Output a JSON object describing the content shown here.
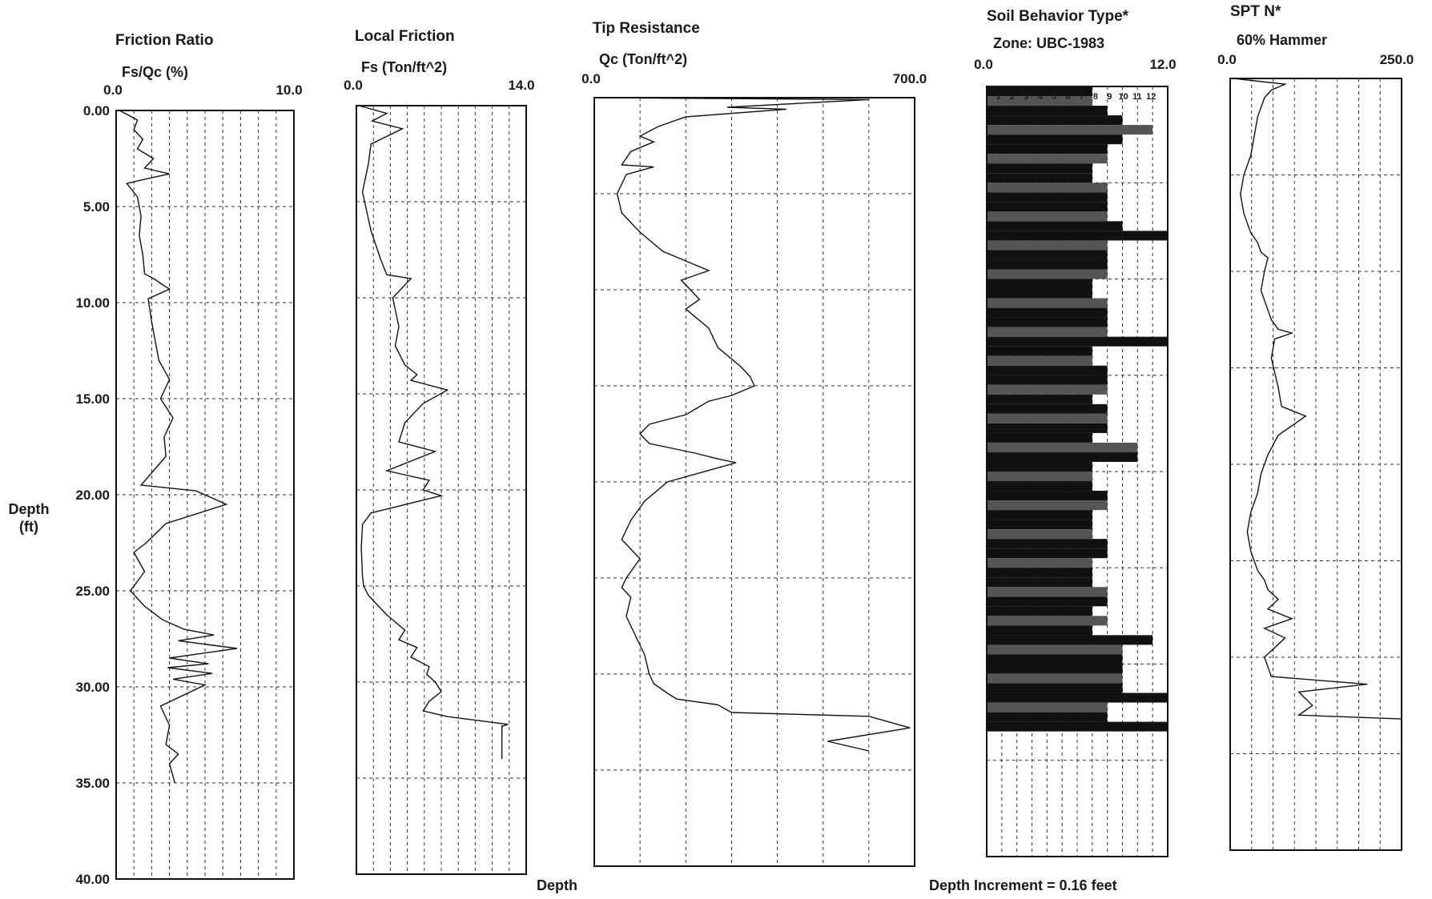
{
  "page": {
    "depth_label_line1": "Depth",
    "depth_label_line2": "(ft)",
    "footer_left": "Depth",
    "footer_right": "Depth Increment = 0.16 feet"
  },
  "chart_data": [
    {
      "type": "line",
      "title": "Friction Ratio",
      "subtitle": "Fs/Qc (%)",
      "xlim": [
        0,
        10
      ],
      "xticks": [
        "0.0",
        "10.0"
      ],
      "ylim": [
        0,
        40
      ],
      "yticks": [
        "0.00",
        "5.00",
        "10.00",
        "15.00",
        "20.00",
        "25.00",
        "30.00",
        "35.00",
        "40.00"
      ],
      "series": [
        {
          "x": [
            0.2,
            1.2,
            1.0,
            1.5,
            1.2,
            2.1,
            1.6,
            3.0,
            1.5,
            0.6,
            1.2,
            1.4,
            1.3,
            1.5,
            1.6,
            2.2,
            2.5,
            3.0,
            1.8,
            2.0,
            2.2,
            2.4,
            3.0,
            2.5,
            3.2,
            2.7,
            2.8,
            1.4,
            4.5,
            6.2,
            2.8,
            1.7,
            1.0,
            1.6,
            0.8,
            1.6,
            2.6,
            3.8,
            5.5,
            3.5,
            6.8,
            3.0,
            5.2,
            2.9,
            5.4,
            3.2,
            5.0,
            2.5,
            3.0,
            2.8,
            3.5,
            3.0,
            3.3
          ],
          "y": [
            0,
            0.5,
            1.0,
            1.5,
            2.0,
            2.5,
            3.0,
            3.3,
            3.6,
            3.8,
            4.5,
            5.5,
            6.5,
            7.5,
            8.5,
            8.8,
            9.0,
            9.3,
            9.8,
            11.0,
            12.0,
            13.0,
            14.0,
            15.0,
            16.0,
            17.0,
            18.0,
            19.5,
            19.8,
            20.5,
            21.5,
            22.5,
            23.0,
            24.0,
            25.0,
            25.8,
            26.5,
            27.0,
            27.3,
            27.6,
            28.0,
            28.5,
            28.8,
            29.0,
            29.3,
            29.6,
            29.9,
            31.0,
            32.0,
            33.0,
            33.5,
            34.0,
            35.0
          ]
        }
      ]
    },
    {
      "type": "line",
      "title": "Local Friction",
      "subtitle": "Fs (Ton/ft^2)",
      "xlim": [
        0,
        14
      ],
      "xticks": [
        "0.0",
        "14.0"
      ],
      "ylim": [
        0,
        40
      ],
      "series": [
        {
          "x": [
            0.2,
            2.5,
            1.3,
            3.8,
            1.2,
            1.0,
            0.5,
            1.2,
            2.0,
            2.5,
            4.5,
            3.0,
            3.5,
            3.2,
            4.0,
            5.0,
            4.5,
            7.5,
            5.5,
            4.0,
            3.5,
            6.5,
            2.5,
            6.0,
            5.5,
            7.0,
            1.2,
            0.5,
            0.4,
            0.5,
            0.6,
            1.0,
            2.5,
            4.0,
            3.5,
            5.0,
            4.5,
            6.0,
            5.8,
            6.5,
            7.0,
            6.0,
            5.5,
            7.5,
            12.5,
            12.0,
            12.0
          ],
          "y": [
            0,
            0.4,
            0.8,
            1.2,
            2.0,
            3.0,
            4.5,
            6.5,
            8.0,
            8.8,
            9.0,
            10.0,
            11.5,
            12.5,
            13.5,
            14.0,
            14.3,
            14.8,
            15.5,
            16.5,
            17.5,
            18.0,
            19.0,
            19.5,
            20.0,
            20.3,
            21.2,
            21.8,
            23.0,
            24.5,
            25.0,
            25.5,
            26.5,
            27.3,
            27.8,
            28.2,
            28.7,
            29.2,
            29.6,
            30.0,
            30.5,
            31.0,
            31.5,
            31.8,
            32.2,
            32.3,
            34.0
          ]
        }
      ]
    },
    {
      "type": "line",
      "title": "Tip Resistance",
      "subtitle": "Qc (Ton/ft^2)",
      "xlim": [
        0,
        700
      ],
      "xticks": [
        "0.0",
        "700.0"
      ],
      "ylim": [
        0,
        40
      ],
      "series": [
        {
          "x": [
            5,
            600,
            290,
            420,
            200,
            140,
            100,
            130,
            80,
            60,
            130,
            70,
            50,
            60,
            100,
            150,
            200,
            250,
            190,
            230,
            200,
            250,
            270,
            320,
            340,
            350,
            300,
            250,
            200,
            120,
            100,
            120,
            220,
            270,
            310,
            280,
            160,
            110,
            80,
            60,
            100,
            70,
            60,
            80,
            70,
            90,
            110,
            120,
            130,
            160,
            180,
            270,
            300,
            600,
            690,
            510,
            600
          ],
          "y": [
            0,
            0.1,
            0.5,
            0.6,
            1.0,
            1.5,
            2.0,
            2.3,
            2.8,
            3.5,
            3.6,
            4.0,
            5.0,
            6.0,
            7.0,
            8.0,
            8.5,
            9.0,
            9.5,
            10.5,
            11.0,
            12.0,
            13.0,
            14.0,
            14.5,
            15.0,
            15.5,
            15.8,
            16.5,
            17.0,
            17.5,
            18.0,
            18.5,
            18.8,
            19.0,
            19.2,
            20.0,
            21.0,
            22.0,
            23.0,
            24.0,
            25.0,
            25.5,
            26.0,
            27.0,
            28.0,
            29.0,
            30.0,
            30.5,
            31.0,
            31.3,
            31.6,
            32.0,
            32.2,
            32.8,
            33.5,
            34.0
          ]
        }
      ]
    },
    {
      "type": "bar",
      "title": "Soil Behavior Type*",
      "subtitle": "Zone: UBC-1983",
      "xlim": [
        0,
        12
      ],
      "xticks": [
        "0.0",
        "12.0"
      ],
      "ylim": [
        0,
        40
      ],
      "header_zones": [
        "1",
        "2",
        "3",
        "4",
        "5",
        "6",
        "7",
        "8",
        "9",
        "10",
        "11",
        "12"
      ],
      "categories": [
        0.0,
        0.5,
        1.0,
        1.5,
        2.0,
        2.5,
        3.0,
        3.5,
        4.0,
        4.5,
        5.0,
        5.5,
        6.0,
        6.5,
        7.0,
        7.5,
        8.0,
        8.5,
        9.0,
        9.5,
        10.0,
        10.5,
        11.0,
        11.5,
        12.0,
        12.5,
        13.0,
        13.5,
        14.0,
        14.5,
        15.0,
        15.5,
        16.0,
        16.5,
        17.0,
        17.5,
        18.0,
        18.5,
        19.0,
        19.5,
        20.0,
        20.5,
        21.0,
        21.5,
        22.0,
        22.5,
        23.0,
        23.5,
        24.0,
        24.5,
        25.0,
        25.5,
        26.0,
        26.5,
        27.0,
        27.5,
        28.0,
        28.5,
        29.0,
        29.5,
        30.0,
        30.5,
        31.0,
        31.5,
        32.0,
        32.5,
        33.0
      ],
      "values": [
        7,
        7,
        8,
        9,
        11,
        9,
        8,
        8,
        7,
        7,
        8,
        8,
        8,
        8,
        9,
        12,
        8,
        8,
        8,
        8,
        7,
        7,
        8,
        8,
        8,
        8,
        12,
        7,
        7,
        8,
        8,
        8,
        7,
        8,
        8,
        8,
        7,
        10,
        10,
        7,
        7,
        7,
        8,
        8,
        7,
        7,
        7,
        8,
        8,
        7,
        7,
        7,
        8,
        8,
        7,
        8,
        7,
        11,
        9,
        9,
        9,
        9,
        9,
        12,
        8,
        8,
        12
      ]
    },
    {
      "type": "line",
      "title": "SPT N*",
      "subtitle": "60% Hammer",
      "xlim": [
        0,
        250
      ],
      "xticks": [
        "0.0",
        "250.0"
      ],
      "ylim": [
        0,
        40
      ],
      "series": [
        {
          "x": [
            5,
            80,
            60,
            50,
            40,
            35,
            30,
            20,
            15,
            20,
            25,
            30,
            40,
            45,
            55,
            50,
            45,
            55,
            60,
            70,
            90,
            65,
            60,
            70,
            75,
            110,
            70,
            55,
            45,
            40,
            30,
            25,
            30,
            40,
            50,
            55,
            70,
            55,
            90,
            50,
            80,
            50,
            60,
            200,
            100,
            120,
            100,
            250,
            250
          ],
          "y": [
            0,
            0.3,
            0.6,
            1.0,
            2.0,
            3.0,
            4.0,
            5.0,
            6.0,
            7.0,
            7.5,
            8.0,
            8.5,
            9.0,
            9.3,
            10.0,
            11.0,
            12.0,
            12.5,
            13.0,
            13.2,
            13.5,
            14.5,
            16.0,
            17.0,
            17.5,
            18.5,
            19.5,
            20.5,
            21.5,
            22.5,
            23.5,
            24.5,
            25.5,
            26.0,
            26.5,
            27.0,
            27.5,
            28.0,
            28.5,
            29.0,
            30.0,
            31.0,
            31.4,
            31.8,
            32.5,
            33.0,
            33.2,
            33.4
          ]
        }
      ]
    }
  ]
}
